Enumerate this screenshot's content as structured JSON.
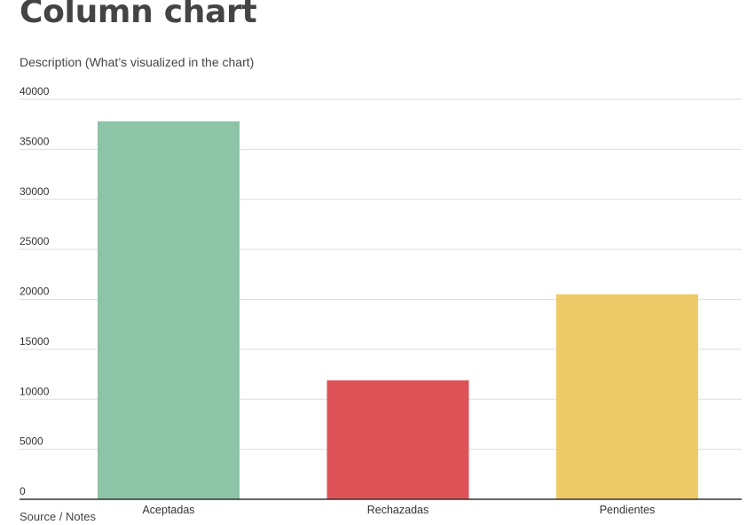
{
  "header": {
    "title": "Column chart",
    "description": "Description (What’s visualized in the chart)"
  },
  "footer": {
    "source": "Source / Notes"
  },
  "chart_data": {
    "type": "bar",
    "title": "Column chart",
    "subtitle": "Description (What’s visualized in the chart)",
    "categories": [
      "Aceptadas",
      "Rechazadas",
      "Pendientes"
    ],
    "values": [
      37800,
      11900,
      20500
    ],
    "colors": [
      "#8dc3a7",
      "#dd5358",
      "#eeca69"
    ],
    "xlabel": "",
    "ylabel": "",
    "ylim": [
      0,
      40000
    ],
    "yticks": [
      0,
      5000,
      10000,
      15000,
      20000,
      25000,
      30000,
      35000,
      40000
    ],
    "grid": true,
    "gridColor": "#dddddd",
    "axisColor": "#333333",
    "legend": "none"
  }
}
